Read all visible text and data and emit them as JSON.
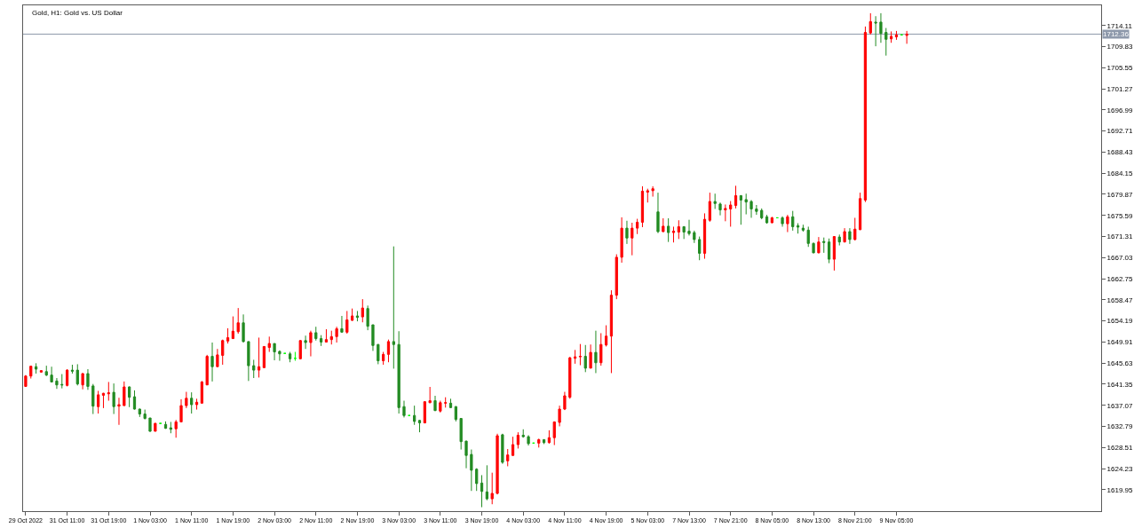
{
  "chart_data": {
    "type": "candlestick",
    "title": "Gold, H1: Gold vs. US Dollar",
    "categories": [
      "29 Oct 2022",
      null,
      null,
      null,
      null,
      null,
      null,
      null,
      "31 Oct 11:00",
      null,
      null,
      null,
      null,
      null,
      null,
      null,
      "31 Oct 19:00",
      null,
      null,
      null,
      null,
      null,
      null,
      null,
      "1 Nov 03:00",
      null,
      null,
      null,
      null,
      null,
      null,
      null,
      "1 Nov 11:00",
      null,
      null,
      null,
      null,
      null,
      null,
      null,
      "1 Nov 19:00",
      null,
      null,
      null,
      null,
      null,
      null,
      null,
      "2 Nov 03:00",
      null,
      null,
      null,
      null,
      null,
      null,
      null,
      "2 Nov 11:00",
      null,
      null,
      null,
      null,
      null,
      null,
      null,
      "2 Nov 19:00",
      null,
      null,
      null,
      null,
      null,
      null,
      null,
      "3 Nov 03:00",
      null,
      null,
      null,
      null,
      null,
      null,
      null,
      "3 Nov 11:00",
      null,
      null,
      null,
      null,
      null,
      null,
      null,
      "3 Nov 19:00",
      null,
      null,
      null,
      null,
      null,
      null,
      null,
      "4 Nov 03:00",
      null,
      null,
      null,
      null,
      null,
      null,
      null,
      "4 Nov 11:00",
      null,
      null,
      null,
      null,
      null,
      null,
      null,
      "4 Nov 19:00",
      null,
      null,
      null,
      null,
      null,
      null,
      null,
      "5 Nov 03:00",
      null,
      null,
      null,
      null,
      null,
      null,
      null,
      "7 Nov 13:00",
      null,
      null,
      null,
      null,
      null,
      null,
      null,
      "7 Nov 21:00",
      null,
      null,
      null,
      null,
      null,
      null,
      null,
      "8 Nov 05:00",
      null,
      null,
      null,
      null,
      null,
      null,
      null,
      "8 Nov 13:00",
      null,
      null,
      null,
      null,
      null,
      null,
      null,
      "8 Nov 21:00",
      null,
      null,
      null,
      null,
      null,
      null,
      null,
      "9 Nov 05:00",
      null,
      null,
      null,
      null,
      null,
      null,
      null,
      null,
      null,
      null,
      null,
      null,
      null,
      null,
      null,
      null,
      null,
      null,
      null,
      null,
      null,
      null,
      null,
      null,
      null,
      null,
      null,
      null,
      null,
      null,
      null,
      null,
      null,
      null,
      null,
      null,
      null,
      null,
      null
    ],
    "ohlc": [
      [
        1640.9,
        1643.2,
        1640.8,
        1643.0
      ],
      [
        1643.0,
        1645.1,
        1642.5,
        1645.0
      ],
      [
        1644.9,
        1645.6,
        1643.5,
        1644.4
      ],
      [
        1643.8,
        1644.2,
        1643.7,
        1644.1
      ],
      [
        1643.9,
        1645.1,
        1643.0,
        1643.2
      ],
      [
        1643.2,
        1644.9,
        1641.7,
        1641.8
      ],
      [
        1642.0,
        1642.6,
        1640.4,
        1641.2
      ],
      [
        1641.3,
        1643.4,
        1640.5,
        1641.2
      ],
      [
        1641.1,
        1644.4,
        1640.9,
        1644.2
      ],
      [
        1644.2,
        1645.3,
        1643.5,
        1644.0
      ],
      [
        1644.2,
        1645.4,
        1641.1,
        1641.4
      ],
      [
        1641.2,
        1643.6,
        1640.3,
        1643.5
      ],
      [
        1643.5,
        1644.4,
        1640.2,
        1640.9
      ],
      [
        1641.0,
        1641.4,
        1635.3,
        1636.9
      ],
      [
        1636.8,
        1640.0,
        1635.4,
        1639.2
      ],
      [
        1639.1,
        1639.6,
        1636.5,
        1639.5
      ],
      [
        1639.4,
        1641.8,
        1638.0,
        1639.6
      ],
      [
        1639.7,
        1641.5,
        1635.3,
        1636.8
      ],
      [
        1636.9,
        1638.6,
        1633.1,
        1637.2
      ],
      [
        1637.0,
        1641.9,
        1637.0,
        1640.8
      ],
      [
        1640.8,
        1640.9,
        1636.7,
        1638.7
      ],
      [
        1638.8,
        1640.1,
        1636.2,
        1636.3
      ],
      [
        1636.3,
        1636.4,
        1634.7,
        1635.3
      ],
      [
        1635.3,
        1636.2,
        1634.2,
        1634.4
      ],
      [
        1634.5,
        1634.5,
        1631.7,
        1631.8
      ],
      [
        1631.8,
        1633.5,
        1631.8,
        1633.4
      ],
      [
        1633.4,
        1633.4,
        1633.4,
        1633.4
      ],
      [
        1633.2,
        1633.8,
        1632.3,
        1632.4
      ],
      [
        1632.5,
        1633.7,
        1631.4,
        1632.2
      ],
      [
        1632.3,
        1634.1,
        1630.5,
        1633.7
      ],
      [
        1633.7,
        1638.3,
        1633.7,
        1637.0
      ],
      [
        1637.0,
        1639.8,
        1636.5,
        1638.5
      ],
      [
        1638.5,
        1639.7,
        1635.4,
        1637.2
      ],
      [
        1637.2,
        1638.4,
        1636.2,
        1637.7
      ],
      [
        1637.5,
        1642.0,
        1637.4,
        1641.8
      ],
      [
        1641.2,
        1647.3,
        1641.2,
        1647.0
      ],
      [
        1647.0,
        1649.8,
        1641.9,
        1644.9
      ],
      [
        1644.9,
        1648.5,
        1644.9,
        1647.3
      ],
      [
        1647.2,
        1650.4,
        1645.3,
        1650.2
      ],
      [
        1650.1,
        1652.7,
        1649.6,
        1650.8
      ],
      [
        1650.6,
        1655.1,
        1650.6,
        1652.1
      ],
      [
        1652.0,
        1656.8,
        1651.6,
        1653.8
      ],
      [
        1653.8,
        1655.5,
        1649.8,
        1650.0
      ],
      [
        1650.0,
        1650.0,
        1642.0,
        1645.1
      ],
      [
        1645.1,
        1646.3,
        1642.6,
        1644.2
      ],
      [
        1644.2,
        1650.8,
        1642.7,
        1644.9
      ],
      [
        1644.7,
        1649.0,
        1644.7,
        1649.0
      ],
      [
        1648.8,
        1651.0,
        1647.9,
        1649.6
      ],
      [
        1649.6,
        1649.6,
        1646.2,
        1647.9
      ],
      [
        1648.0,
        1648.2,
        1646.1,
        1647.5
      ],
      [
        1647.6,
        1647.6,
        1647.6,
        1647.6
      ],
      [
        1647.5,
        1647.9,
        1645.8,
        1646.5
      ],
      [
        1646.6,
        1647.9,
        1646.1,
        1646.6
      ],
      [
        1646.5,
        1650.3,
        1646.4,
        1650.2
      ],
      [
        1650.2,
        1651.2,
        1648.5,
        1649.8
      ],
      [
        1649.8,
        1652.2,
        1647.0,
        1651.8
      ],
      [
        1651.8,
        1653.0,
        1650.2,
        1650.6
      ],
      [
        1650.6,
        1651.3,
        1649.1,
        1649.9
      ],
      [
        1649.9,
        1652.5,
        1649.8,
        1650.4
      ],
      [
        1650.4,
        1652.2,
        1649.4,
        1651.0
      ],
      [
        1651.0,
        1653.0,
        1649.8,
        1652.6
      ],
      [
        1652.6,
        1655.2,
        1651.8,
        1651.9
      ],
      [
        1651.9,
        1656.2,
        1651.6,
        1654.4
      ],
      [
        1654.3,
        1656.7,
        1654.2,
        1655.2
      ],
      [
        1655.2,
        1656.2,
        1654.1,
        1654.9
      ],
      [
        1655.0,
        1658.6,
        1653.9,
        1656.8
      ],
      [
        1656.7,
        1657.3,
        1652.3,
        1653.1
      ],
      [
        1653.4,
        1653.4,
        1648.1,
        1649.2
      ],
      [
        1649.4,
        1649.5,
        1645.4,
        1646.1
      ],
      [
        1646.1,
        1647.9,
        1645.3,
        1647.4
      ],
      [
        1647.4,
        1650.4,
        1645.8,
        1650.0
      ],
      [
        1650.0,
        1669.3,
        1644.5,
        1649.4
      ],
      [
        1649.4,
        1652.1,
        1635.4,
        1636.6
      ],
      [
        1636.8,
        1638.0,
        1634.6,
        1635.0
      ],
      [
        1635.0,
        1635.0,
        1635.0,
        1635.0
      ],
      [
        1635.0,
        1637.0,
        1633.1,
        1633.8
      ],
      [
        1634.0,
        1634.1,
        1631.6,
        1633.5
      ],
      [
        1633.5,
        1637.9,
        1633.4,
        1637.8
      ],
      [
        1637.6,
        1640.8,
        1637.5,
        1638.0
      ],
      [
        1638.0,
        1639.0,
        1635.9,
        1636.0
      ],
      [
        1635.9,
        1638.0,
        1635.6,
        1637.6
      ],
      [
        1637.5,
        1638.7,
        1636.6,
        1637.6
      ],
      [
        1637.5,
        1638.4,
        1636.5,
        1636.6
      ],
      [
        1636.8,
        1636.9,
        1633.8,
        1634.2
      ],
      [
        1634.4,
        1634.5,
        1628.1,
        1629.7
      ],
      [
        1629.8,
        1629.9,
        1624.3,
        1626.9
      ],
      [
        1627.1,
        1628.1,
        1619.7,
        1623.9
      ],
      [
        1624.1,
        1624.3,
        1619.7,
        1621.2
      ],
      [
        1621.3,
        1622.9,
        1616.4,
        1619.6
      ],
      [
        1619.5,
        1624.9,
        1617.8,
        1618.1
      ],
      [
        1618.1,
        1623.4,
        1617.0,
        1619.2
      ],
      [
        1619.2,
        1631.3,
        1619.0,
        1630.9
      ],
      [
        1631.1,
        1631.3,
        1625.2,
        1625.5
      ],
      [
        1625.8,
        1628.2,
        1624.7,
        1627.0
      ],
      [
        1626.9,
        1630.7,
        1626.8,
        1629.1
      ],
      [
        1629.1,
        1631.6,
        1628.3,
        1631.0
      ],
      [
        1631.0,
        1632.2,
        1630.5,
        1630.7
      ],
      [
        1630.7,
        1631.0,
        1628.9,
        1629.3
      ],
      [
        1629.4,
        1629.4,
        1629.4,
        1629.4
      ],
      [
        1629.4,
        1630.3,
        1628.5,
        1630.1
      ],
      [
        1630.1,
        1630.2,
        1629.2,
        1629.5
      ],
      [
        1629.5,
        1632.0,
        1629.3,
        1630.5
      ],
      [
        1630.5,
        1633.8,
        1629.0,
        1633.7
      ],
      [
        1633.6,
        1637.0,
        1632.8,
        1636.3
      ],
      [
        1636.3,
        1639.8,
        1636.1,
        1639.0
      ],
      [
        1638.7,
        1646.9,
        1638.4,
        1646.7
      ],
      [
        1646.6,
        1648.3,
        1645.5,
        1646.9
      ],
      [
        1646.9,
        1649.5,
        1645.2,
        1647.0
      ],
      [
        1647.0,
        1649.3,
        1643.8,
        1644.6
      ],
      [
        1644.6,
        1649.4,
        1644.6,
        1647.8
      ],
      [
        1647.8,
        1652.2,
        1643.6,
        1645.7
      ],
      [
        1645.7,
        1651.7,
        1645.1,
        1649.4
      ],
      [
        1649.3,
        1653.3,
        1649.0,
        1651.1
      ],
      [
        1651.1,
        1660.4,
        1643.6,
        1659.4
      ],
      [
        1659.4,
        1667.7,
        1658.6,
        1667.1
      ],
      [
        1667.1,
        1675.2,
        1666.0,
        1673.0
      ],
      [
        1673.0,
        1674.5,
        1669.8,
        1671.0
      ],
      [
        1671.0,
        1674.1,
        1667.5,
        1673.0
      ],
      [
        1673.0,
        1674.9,
        1671.8,
        1674.2
      ],
      [
        1674.2,
        1681.5,
        1673.2,
        1680.5
      ],
      [
        1680.3,
        1681.0,
        1678.2,
        1680.6
      ],
      [
        1680.6,
        1681.5,
        1679.4,
        1681.0
      ],
      [
        1676.3,
        1680.2,
        1672.0,
        1672.3
      ],
      [
        1672.3,
        1675.0,
        1672.2,
        1673.4
      ],
      [
        1673.4,
        1675.0,
        1670.2,
        1672.1
      ],
      [
        1672.1,
        1673.3,
        1670.1,
        1672.4
      ],
      [
        1672.2,
        1674.6,
        1670.8,
        1673.3
      ],
      [
        1673.3,
        1673.4,
        1670.8,
        1672.2
      ],
      [
        1672.4,
        1674.7,
        1671.5,
        1671.9
      ],
      [
        1672.1,
        1672.5,
        1670.0,
        1670.7
      ],
      [
        1670.7,
        1671.3,
        1666.5,
        1667.9
      ],
      [
        1667.9,
        1676.0,
        1666.8,
        1674.8
      ],
      [
        1674.6,
        1680.2,
        1674.3,
        1678.4
      ],
      [
        1678.4,
        1680.0,
        1676.9,
        1678.0
      ],
      [
        1677.9,
        1678.2,
        1675.6,
        1676.7
      ],
      [
        1676.7,
        1677.8,
        1674.4,
        1677.0
      ],
      [
        1676.9,
        1678.5,
        1673.3,
        1677.7
      ],
      [
        1677.6,
        1681.6,
        1677.0,
        1679.6
      ],
      [
        1679.6,
        1679.7,
        1673.7,
        1678.7
      ],
      [
        1678.8,
        1680.0,
        1675.8,
        1678.3
      ],
      [
        1678.4,
        1678.7,
        1675.1,
        1676.9
      ],
      [
        1676.9,
        1677.7,
        1675.7,
        1676.4
      ],
      [
        1676.6,
        1677.0,
        1674.8,
        1675.1
      ],
      [
        1675.3,
        1675.7,
        1673.9,
        1674.1
      ],
      [
        1674.1,
        1675.3,
        1674.0,
        1675.1
      ],
      [
        1675.1,
        1675.1,
        1675.1,
        1675.1
      ],
      [
        1675.1,
        1675.4,
        1673.3,
        1673.9
      ],
      [
        1673.9,
        1675.7,
        1672.2,
        1675.3
      ],
      [
        1675.3,
        1676.5,
        1672.5,
        1673.3
      ],
      [
        1673.5,
        1674.0,
        1671.9,
        1673.2
      ],
      [
        1673.0,
        1673.7,
        1672.3,
        1672.6
      ],
      [
        1672.6,
        1673.3,
        1669.2,
        1669.9
      ],
      [
        1669.9,
        1670.1,
        1667.9,
        1668.0
      ],
      [
        1668.0,
        1671.2,
        1667.9,
        1670.2
      ],
      [
        1670.3,
        1671.1,
        1668.0,
        1670.1
      ],
      [
        1670.2,
        1670.9,
        1665.9,
        1666.7
      ],
      [
        1666.7,
        1671.4,
        1664.4,
        1671.3
      ],
      [
        1671.2,
        1671.7,
        1669.5,
        1670.2
      ],
      [
        1670.2,
        1673.0,
        1670.1,
        1672.3
      ],
      [
        1672.3,
        1673.0,
        1669.8,
        1670.7
      ],
      [
        1670.7,
        1675.1,
        1670.5,
        1672.8
      ],
      [
        1672.7,
        1680.2,
        1672.6,
        1679.0
      ],
      [
        1678.7,
        1713.9,
        1678.3,
        1712.7
      ],
      [
        1712.6,
        1716.6,
        1712.3,
        1714.9
      ],
      [
        1714.8,
        1716.0,
        1709.9,
        1714.6
      ],
      [
        1714.8,
        1716.6,
        1710.6,
        1712.5
      ],
      [
        1712.7,
        1713.6,
        1708.0,
        1711.3
      ],
      [
        1711.4,
        1712.9,
        1710.6,
        1711.9
      ],
      [
        1711.8,
        1713.0,
        1711.2,
        1712.2
      ],
      [
        1712.2,
        1712.2,
        1712.2,
        1712.2
      ],
      [
        1712.1,
        1713.0,
        1710.4,
        1712.36
      ],
      null,
      null,
      null,
      null,
      null,
      null,
      null,
      null,
      null,
      null,
      null,
      null,
      null,
      null,
      null,
      null,
      null,
      null,
      null,
      null,
      null,
      null,
      null,
      null,
      null,
      null,
      null,
      null,
      null,
      null,
      null,
      null,
      null,
      null,
      null,
      null,
      null
    ],
    "colors": [
      "#ff0000",
      "#ff0000",
      "#228b22",
      "#ff0000",
      "#228b22",
      "#228b22",
      "#228b22",
      "#228b22",
      "#ff0000",
      "#228b22",
      "#228b22",
      "#ff0000",
      "#228b22",
      "#228b22",
      "#ff0000",
      "#ff0000",
      "#ff0000",
      "#228b22",
      "#ff0000",
      "#ff0000",
      "#228b22",
      "#228b22",
      "#228b22",
      "#228b22",
      "#228b22",
      "#ff0000",
      "#00ff00",
      "#228b22",
      "#228b22",
      "#ff0000",
      "#ff0000",
      "#ff0000",
      "#228b22",
      "#ff0000",
      "#ff0000",
      "#ff0000",
      "#228b22",
      "#ff0000",
      "#ff0000",
      "#ff0000",
      "#ff0000",
      "#ff0000",
      "#228b22",
      "#228b22",
      "#228b22",
      "#ff0000",
      "#ff0000",
      "#ff0000",
      "#228b22",
      "#228b22",
      "#00ff00",
      "#228b22",
      "#00ff00",
      "#ff0000",
      "#228b22",
      "#ff0000",
      "#228b22",
      "#228b22",
      "#ff0000",
      "#ff0000",
      "#ff0000",
      "#228b22",
      "#ff0000",
      "#ff0000",
      "#228b22",
      "#ff0000",
      "#228b22",
      "#228b22",
      "#228b22",
      "#ff0000",
      "#ff0000",
      "#228b22",
      "#228b22",
      "#228b22",
      "#00ff00",
      "#228b22",
      "#228b22",
      "#ff0000",
      "#ff0000",
      "#228b22",
      "#ff0000",
      "#ff0000",
      "#228b22",
      "#228b22",
      "#228b22",
      "#228b22",
      "#228b22",
      "#228b22",
      "#228b22",
      "#228b22",
      "#ff0000",
      "#ff0000",
      "#228b22",
      "#ff0000",
      "#ff0000",
      "#ff0000",
      "#228b22",
      "#228b22",
      "#00ff00",
      "#ff0000",
      "#228b22",
      "#ff0000",
      "#ff0000",
      "#ff0000",
      "#ff0000",
      "#ff0000",
      "#ff0000",
      "#ff0000",
      "#228b22",
      "#ff0000",
      "#228b22",
      "#ff0000",
      "#ff0000",
      "#ff0000",
      "#ff0000",
      "#ff0000",
      "#228b22",
      "#ff0000",
      "#ff0000",
      "#ff0000",
      "#ff0000",
      "#ff0000",
      "#228b22",
      "#ff0000",
      "#228b22",
      "#ff0000",
      "#ff0000",
      "#228b22",
      "#228b22",
      "#228b22",
      "#228b22",
      "#ff0000",
      "#ff0000",
      "#228b22",
      "#228b22",
      "#ff0000",
      "#ff0000",
      "#ff0000",
      "#228b22",
      "#228b22",
      "#228b22",
      "#228b22",
      "#228b22",
      "#228b22",
      "#ff0000",
      "#00ff00",
      "#228b22",
      "#ff0000",
      "#228b22",
      "#228b22",
      "#228b22",
      "#228b22",
      "#228b22",
      "#ff0000",
      "#228b22",
      "#228b22",
      "#ff0000",
      "#228b22",
      "#ff0000",
      "#228b22",
      "#ff0000",
      "#ff0000",
      "#ff0000",
      "#ff0000",
      "#228b22",
      "#228b22",
      "#228b22",
      "#ff0000",
      "#ff0000",
      "#00ff00",
      "#ff0000",
      null,
      null,
      null,
      null,
      null,
      null,
      null,
      null,
      null,
      null,
      null,
      null,
      null,
      null,
      null,
      null,
      null,
      null,
      null,
      null,
      null,
      null,
      null,
      null,
      null,
      null,
      null,
      null,
      null,
      null,
      null,
      null,
      null,
      null,
      null,
      null,
      null
    ],
    "ylim": [
      1615.6,
      1718.2
    ],
    "yticks": [
      1619.95,
      1624.23,
      1628.51,
      1632.79,
      1637.07,
      1641.35,
      1645.63,
      1649.91,
      1654.19,
      1658.47,
      1662.75,
      1667.03,
      1671.31,
      1675.59,
      1679.87,
      1684.15,
      1688.43,
      1692.71,
      1696.99,
      1701.27,
      1705.55,
      1709.83,
      1714.11
    ],
    "ref_lines": [
      {
        "axis": "y",
        "value": 1712.36,
        "label": "1712.36",
        "color": "#8e99ab"
      }
    ]
  }
}
